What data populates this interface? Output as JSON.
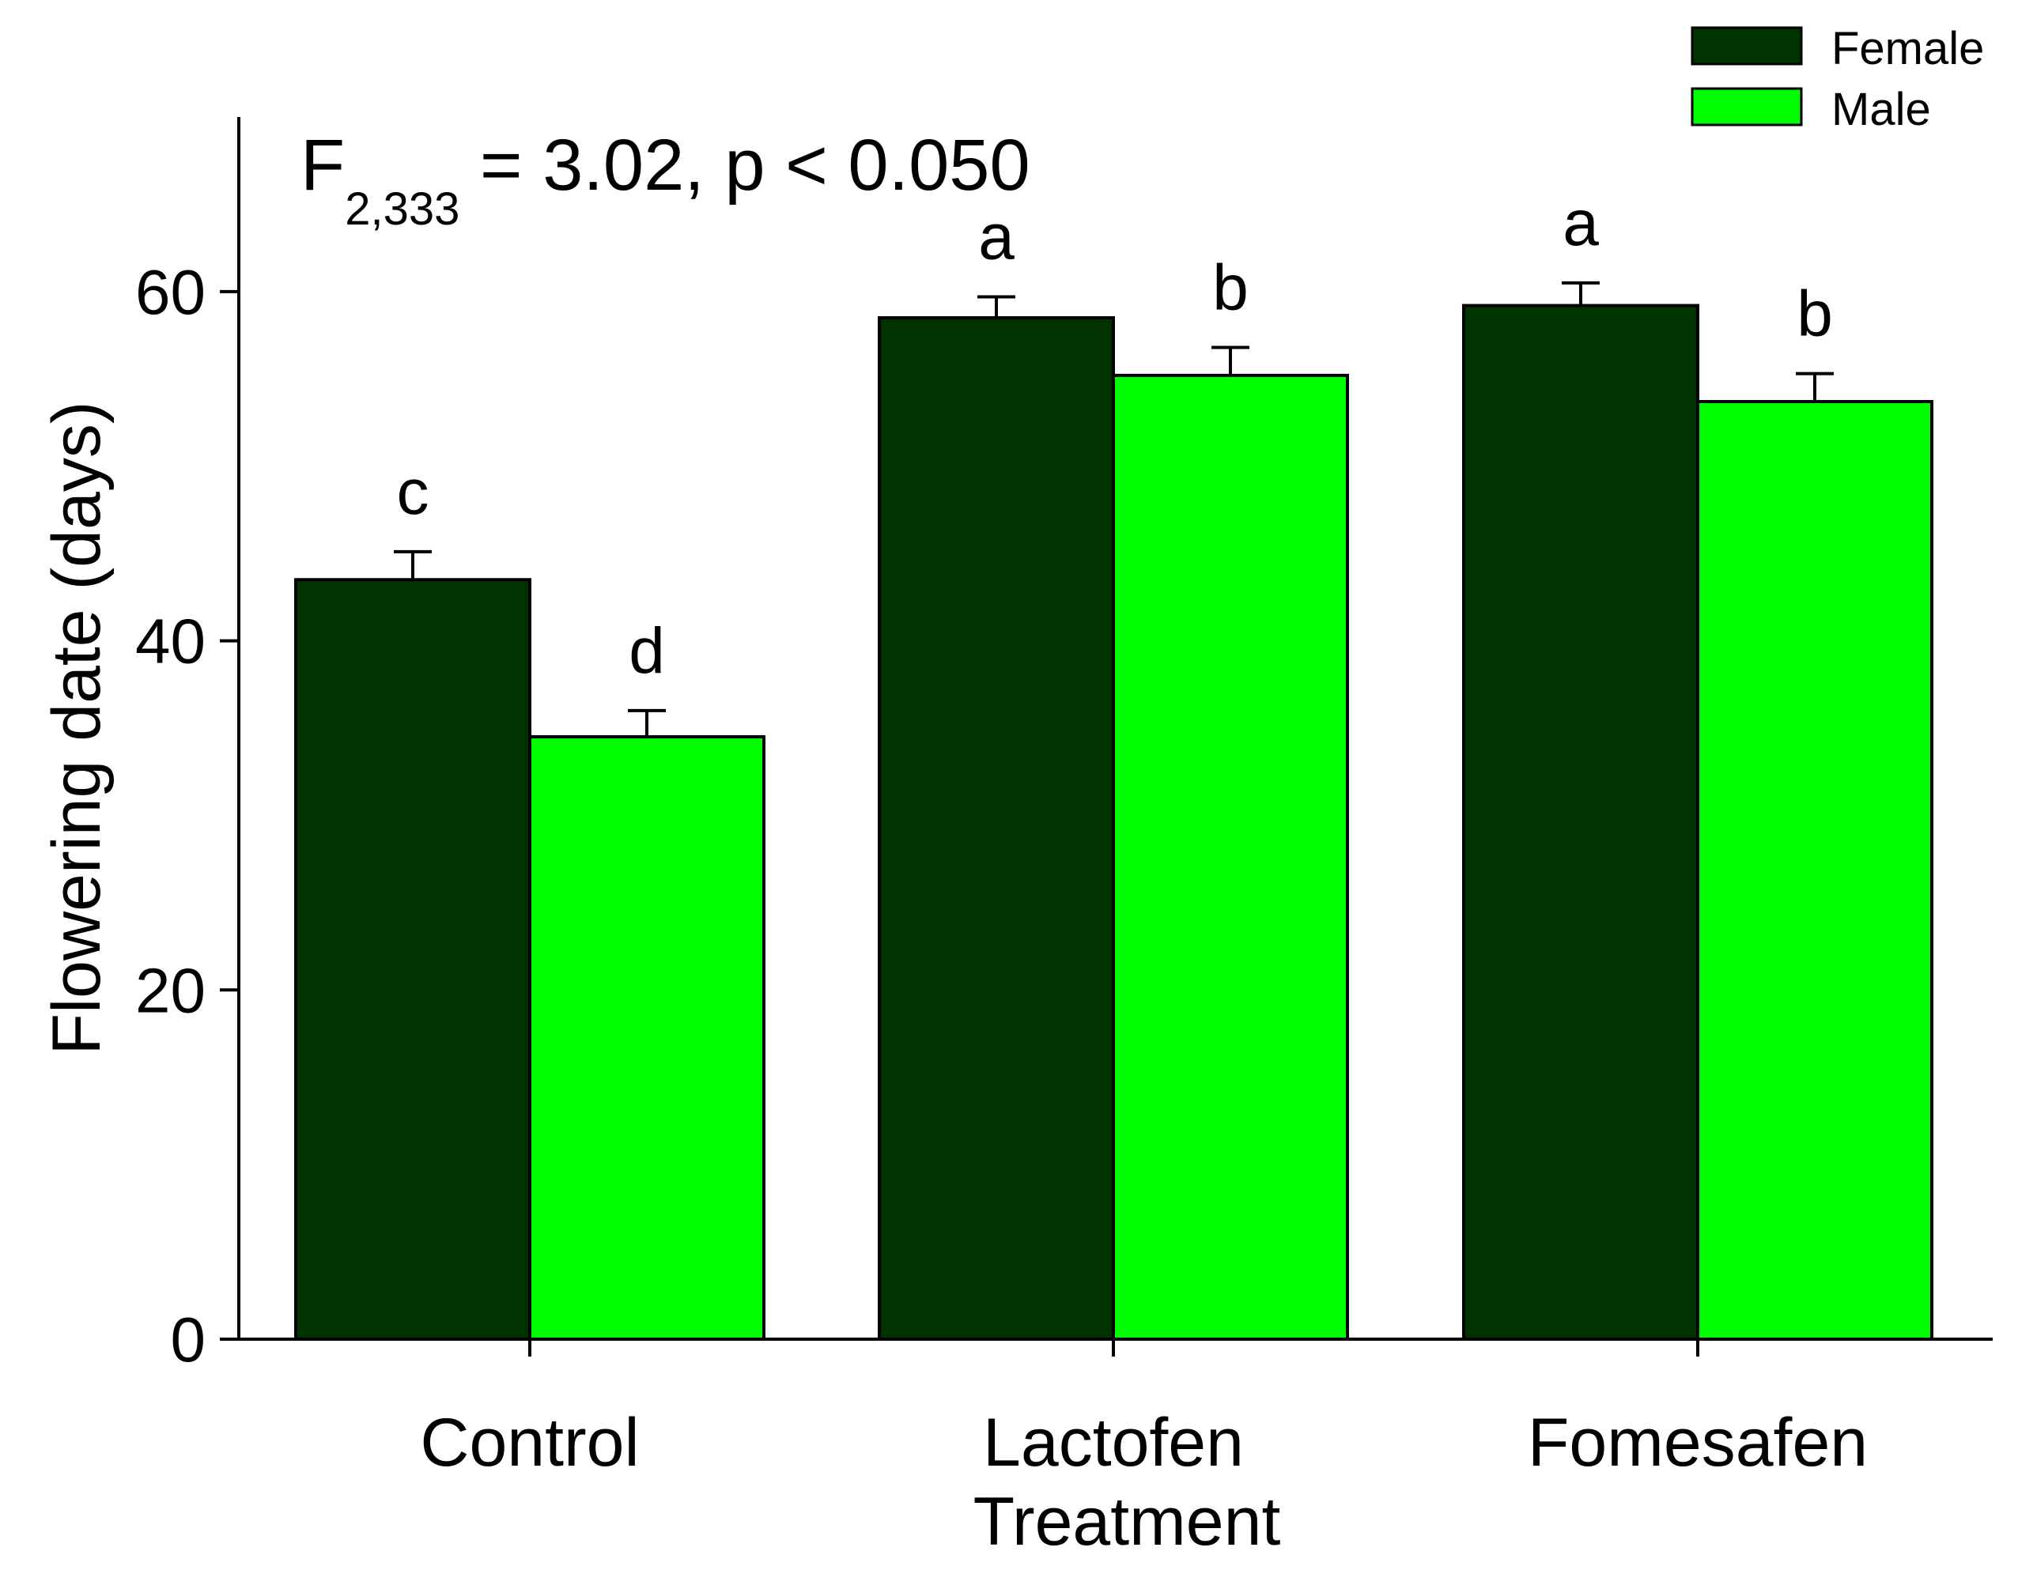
{
  "chart_data": {
    "type": "bar",
    "categories": [
      "Control",
      "Lactofen",
      "Fomesafen"
    ],
    "series": [
      {
        "name": "Female",
        "color": "#003300",
        "values": [
          43.5,
          58.5,
          59.2
        ],
        "errors": [
          1.6,
          1.2,
          1.3
        ],
        "significance": [
          "c",
          "a",
          "a"
        ]
      },
      {
        "name": "Male",
        "color": "#00ff00",
        "values": [
          34.5,
          55.2,
          53.7
        ],
        "errors": [
          1.5,
          1.6,
          1.6
        ],
        "significance": [
          "d",
          "b",
          "b"
        ]
      }
    ],
    "title": "",
    "xlabel": "Treatment",
    "ylabel": "Flowering date (days)",
    "ylim": [
      0,
      70
    ],
    "yticks": [
      "0",
      "20",
      "40",
      "60"
    ],
    "ytick_values": [
      0,
      20,
      40,
      60
    ],
    "grid": false,
    "legend_position": "top-right",
    "annotation": {
      "stat_letter": "F",
      "stat_subscript": "2,333",
      "stat_rest": " = 3.02, p < 0.050"
    }
  }
}
